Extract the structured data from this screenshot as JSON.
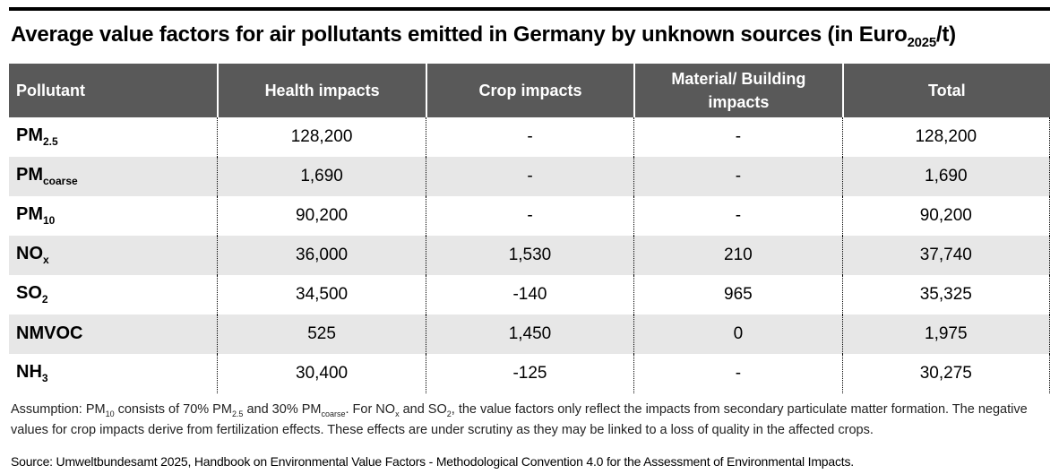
{
  "title": {
    "segments": [
      {
        "t": "Average value factors for air pollutants emitted in Germany by unknown sources (in Euro"
      },
      {
        "sub": "2025"
      },
      {
        "t": "/t)"
      }
    ],
    "plain": "Average value factors for air pollutants emitted in Germany by unknown sources (in Euro2025/t)"
  },
  "colors": {
    "header_bg": "#595959",
    "header_text": "#ffffff",
    "row_stripe": "#e7e7e7",
    "top_rule": "#000000"
  },
  "table": {
    "headers": [
      "Pollutant",
      "Health impacts",
      "Crop impacts",
      "Material/ Building impacts",
      "Total"
    ],
    "rows": [
      {
        "pollutant": [
          {
            "t": "PM"
          },
          {
            "sub": "2.5"
          }
        ],
        "health": "128,200",
        "crop": "-",
        "material": "-",
        "total": "128,200"
      },
      {
        "pollutant": [
          {
            "t": "PM"
          },
          {
            "sub": "coarse"
          }
        ],
        "health": "1,690",
        "crop": "-",
        "material": "-",
        "total": "1,690"
      },
      {
        "pollutant": [
          {
            "t": "PM"
          },
          {
            "sub": "10"
          }
        ],
        "health": "90,200",
        "crop": "-",
        "material": "-",
        "total": "90,200"
      },
      {
        "pollutant": [
          {
            "t": "NO"
          },
          {
            "sub": "x"
          }
        ],
        "health": "36,000",
        "crop": "1,530",
        "material": "210",
        "total": "37,740"
      },
      {
        "pollutant": [
          {
            "t": "SO"
          },
          {
            "sub": "2"
          }
        ],
        "health": "34,500",
        "crop": "-140",
        "material": "965",
        "total": "35,325"
      },
      {
        "pollutant": [
          {
            "t": "NMVOC"
          }
        ],
        "health": "525",
        "crop": "1,450",
        "material": "0",
        "total": "1,975"
      },
      {
        "pollutant": [
          {
            "t": "NH"
          },
          {
            "sub": "3"
          }
        ],
        "health": "30,400",
        "crop": "-125",
        "material": "-",
        "total": "30,275"
      }
    ]
  },
  "footnote": {
    "segments": [
      {
        "t": "Assumption: PM"
      },
      {
        "sub": "10"
      },
      {
        "t": " consists of 70% PM"
      },
      {
        "sub": "2.5"
      },
      {
        "t": " and 30% PM"
      },
      {
        "sub": "coarse"
      },
      {
        "t": ". For NO"
      },
      {
        "sub": "x"
      },
      {
        "t": " and SO"
      },
      {
        "sub": "2"
      },
      {
        "t": ", the value factors only reflect the impacts from secondary particulate matter formation. The negative values for crop impacts derive from fertilization effects. These effects are under scrutiny as they may be linked to a loss of quality in the affected crops."
      }
    ]
  },
  "source": "Source: Umweltbundesamt 2025, Handbook on Environmental Value Factors - Methodological Convention 4.0 for the Assessment of Environmental Impacts.",
  "chart_data": {
    "type": "table",
    "title": "Average value factors for air pollutants emitted in Germany by unknown sources (in Euro2025/t)",
    "unit": "Euro2025/t",
    "columns": [
      "Pollutant",
      "Health impacts",
      "Crop impacts",
      "Material/ Building impacts",
      "Total"
    ],
    "rows": [
      {
        "pollutant": "PM2.5",
        "health": 128200,
        "crop": null,
        "material": null,
        "total": 128200
      },
      {
        "pollutant": "PMcoarse",
        "health": 1690,
        "crop": null,
        "material": null,
        "total": 1690
      },
      {
        "pollutant": "PM10",
        "health": 90200,
        "crop": null,
        "material": null,
        "total": 90200
      },
      {
        "pollutant": "NOx",
        "health": 36000,
        "crop": 1530,
        "material": 210,
        "total": 37740
      },
      {
        "pollutant": "SO2",
        "health": 34500,
        "crop": -140,
        "material": 965,
        "total": 35325
      },
      {
        "pollutant": "NMVOC",
        "health": 525,
        "crop": 1450,
        "material": 0,
        "total": 1975
      },
      {
        "pollutant": "NH3",
        "health": 30400,
        "crop": -125,
        "material": null,
        "total": 30275
      }
    ]
  }
}
